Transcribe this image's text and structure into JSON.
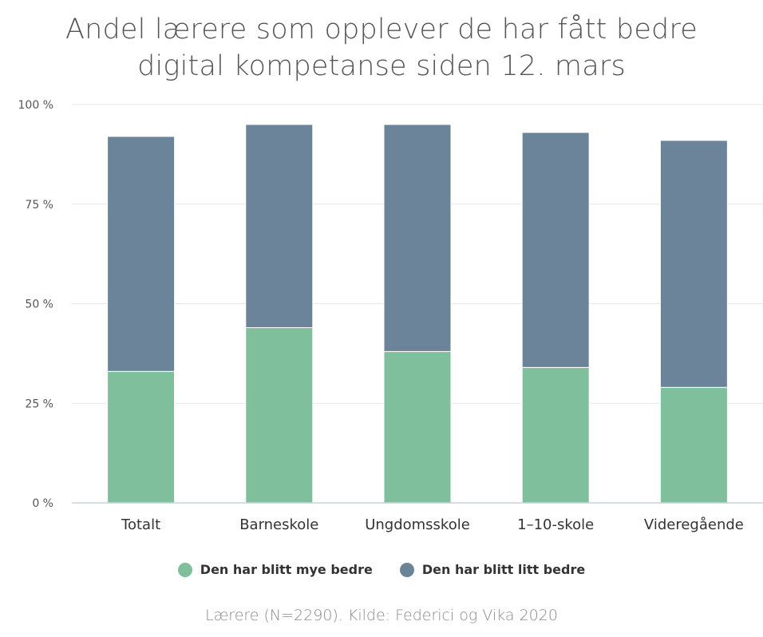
{
  "title_lines": [
    "Andel lærere som opplever de har fått bedre",
    "digital kompetanse siden 12. mars"
  ],
  "source": "Lærere (N=2290). Kilde: Federici og Vika 2020",
  "chart_data": {
    "type": "bar",
    "stacked": true,
    "title": "Andel lærere som opplever de har fått bedre digital kompetanse siden 12. mars",
    "categories": [
      "Totalt",
      "Barneskole",
      "Ungdomsskole",
      "1–10-skole",
      "Videregående"
    ],
    "series": [
      {
        "name": "Den har blitt mye bedre",
        "values": [
          33,
          44,
          38,
          34,
          29
        ],
        "color": "#7fbf9c"
      },
      {
        "name": "Den har blitt litt bedre",
        "values": [
          59,
          51,
          57,
          59,
          62
        ],
        "color": "#6b8499"
      }
    ],
    "ylim": [
      0,
      100
    ],
    "yticks": [
      0,
      25,
      50,
      75,
      100
    ],
    "ytick_labels": [
      "0 %",
      "25 %",
      "50 %",
      "75 %",
      "100 %"
    ],
    "grid": true,
    "legend_position": "bottom"
  }
}
